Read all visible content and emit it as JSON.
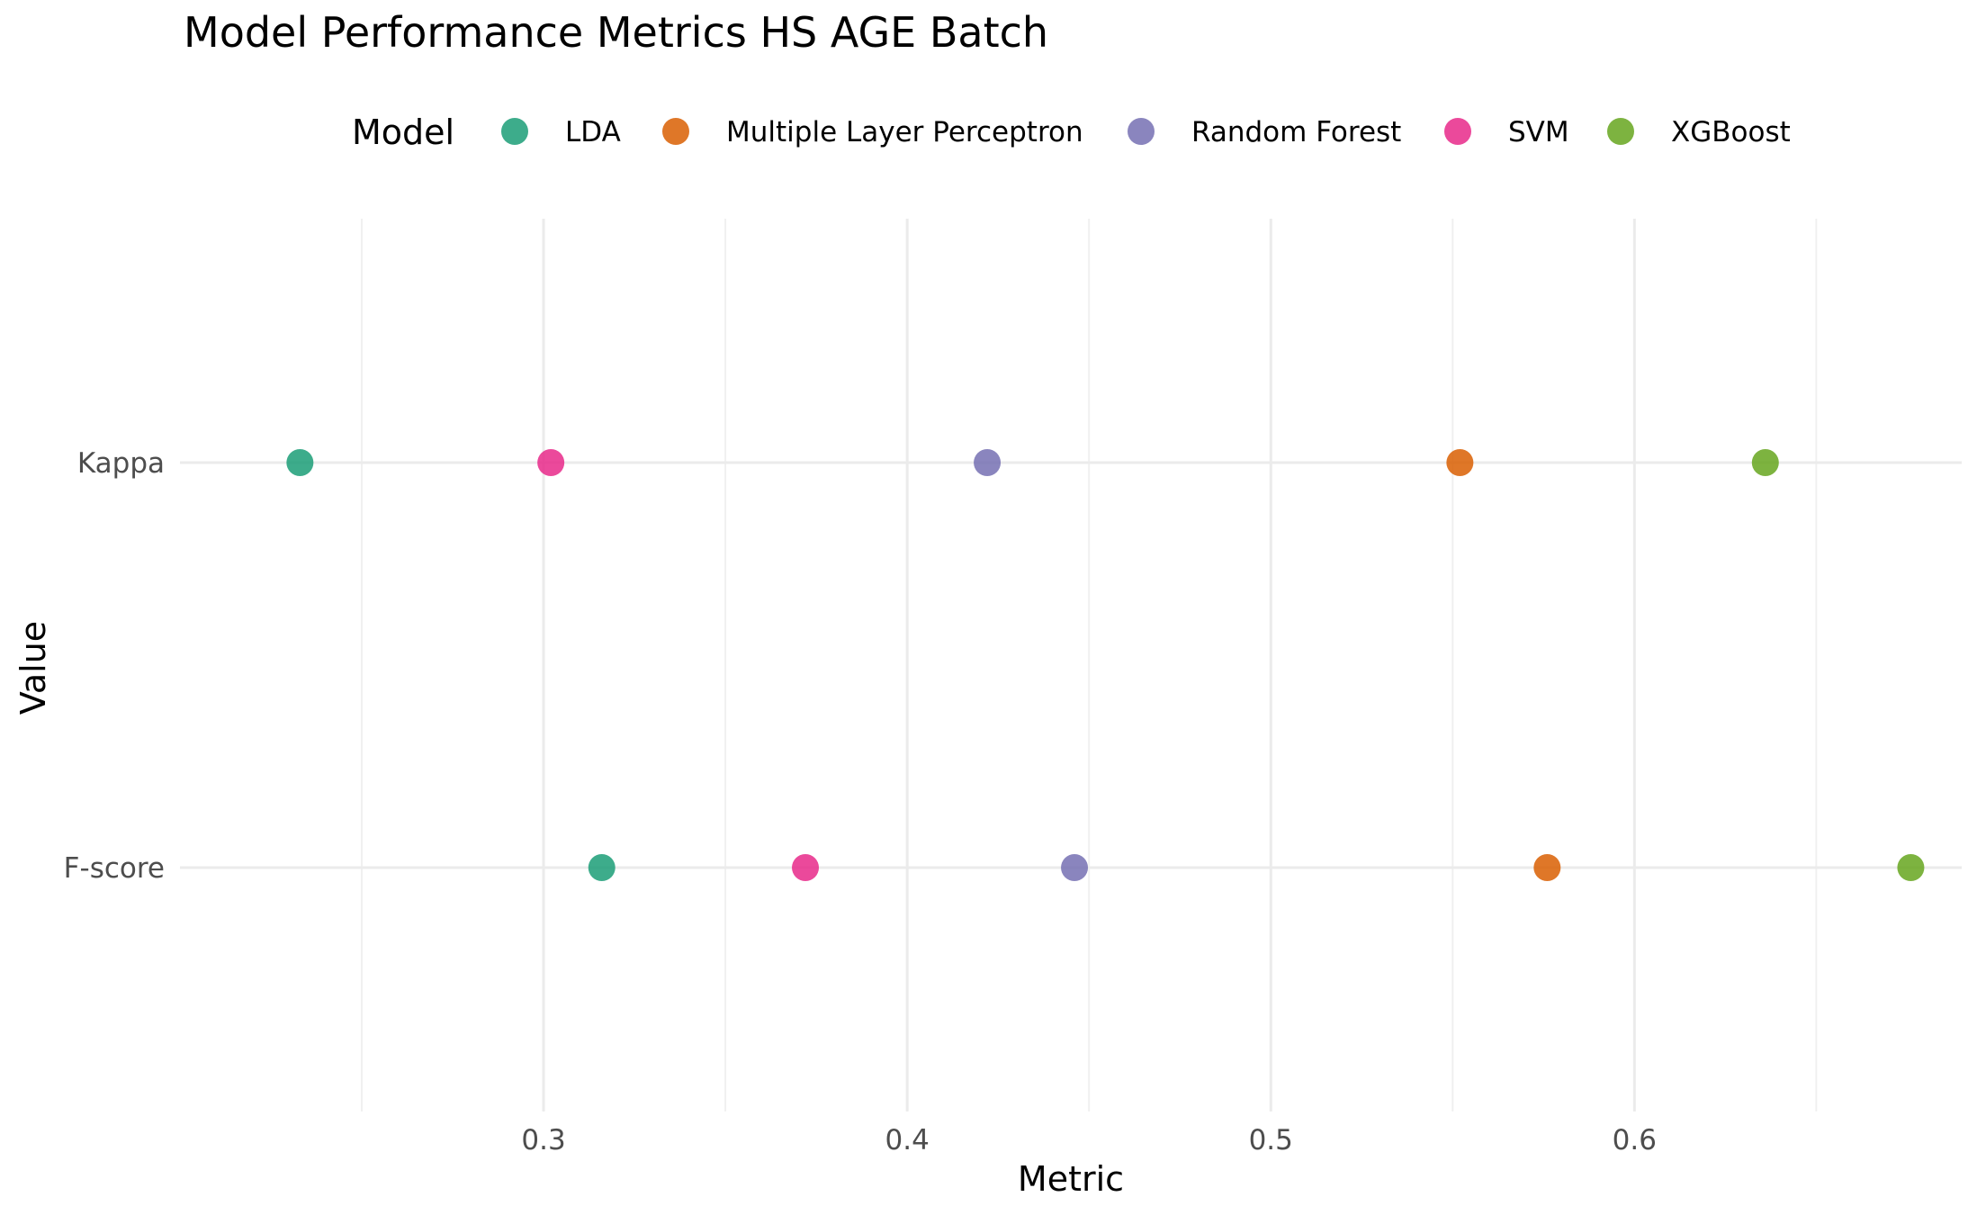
{
  "chart_data": {
    "type": "scatter",
    "title": "Model Performance Metrics HS AGE Batch",
    "xlabel": "Metric",
    "ylabel": "Value",
    "categories": [
      "Kappa",
      "F-score"
    ],
    "xlim": [
      0.2,
      0.69
    ],
    "x_ticks": [
      0.3,
      0.4,
      0.5,
      0.6
    ],
    "x_tick_labels": [
      "0.3",
      "0.4",
      "0.5",
      "0.6"
    ],
    "x_minor_ticks": [
      0.25,
      0.35,
      0.45,
      0.55,
      0.65
    ],
    "grid": true,
    "legend": {
      "title": "Model",
      "position": "top"
    },
    "series": [
      {
        "name": "LDA",
        "color": "#1b9e77",
        "values": {
          "Kappa": 0.233,
          "F-score": 0.316
        }
      },
      {
        "name": "Multiple Layer Perceptron",
        "color": "#d95f02",
        "values": {
          "Kappa": 0.552,
          "F-score": 0.576
        }
      },
      {
        "name": "Random Forest",
        "color": "#7570b3",
        "values": {
          "Kappa": 0.422,
          "F-score": 0.446
        }
      },
      {
        "name": "SVM",
        "color": "#e7298a",
        "values": {
          "Kappa": 0.302,
          "F-score": 0.372
        }
      },
      {
        "name": "XGBoost",
        "color": "#66a61e",
        "values": {
          "Kappa": 0.636,
          "F-score": 0.676
        }
      }
    ]
  }
}
